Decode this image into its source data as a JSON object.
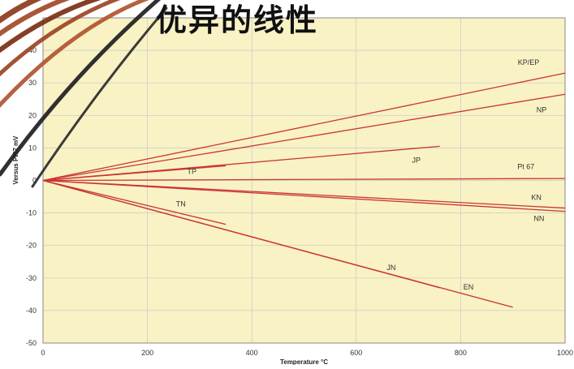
{
  "heading": "优异的线性",
  "chart_data": {
    "type": "line",
    "xlabel": "Temperature °C",
    "ylabel": "Versus Pt67 mV",
    "xlim": [
      0,
      1000
    ],
    "ylim": [
      -50,
      50
    ],
    "x_ticks": [
      0,
      200,
      400,
      600,
      800,
      1000
    ],
    "y_ticks": [
      -50,
      -40,
      -30,
      -20,
      -10,
      0,
      10,
      20,
      30,
      40
    ],
    "grid": true,
    "colors": {
      "background": "#f8f2c4",
      "grid": "#c9c9c9",
      "line": "#cc3333"
    },
    "series": [
      {
        "name": "KP/EP",
        "x": [
          0,
          1000
        ],
        "y": [
          0,
          33
        ],
        "label_at": [
          930,
          35.5
        ]
      },
      {
        "name": "NP",
        "x": [
          0,
          1000
        ],
        "y": [
          0,
          26.5
        ],
        "label_at": [
          955,
          21
        ]
      },
      {
        "name": "JP",
        "x": [
          0,
          760
        ],
        "y": [
          0,
          10.5
        ],
        "label_at": [
          715,
          5.5
        ]
      },
      {
        "name": "TP",
        "x": [
          0,
          350
        ],
        "y": [
          0,
          4.5
        ],
        "label_at": [
          285,
          2
        ]
      },
      {
        "name": "Pt 67",
        "x": [
          0,
          1000
        ],
        "y": [
          0,
          0.6
        ],
        "label_at": [
          925,
          3.5
        ]
      },
      {
        "name": "KN",
        "x": [
          0,
          1000
        ],
        "y": [
          0,
          -8.5
        ],
        "label_at": [
          945,
          -6
        ]
      },
      {
        "name": "NN",
        "x": [
          0,
          1000
        ],
        "y": [
          0,
          -9.5
        ],
        "label_at": [
          950,
          -12.5
        ]
      },
      {
        "name": "TN",
        "x": [
          0,
          350
        ],
        "y": [
          0,
          -13.5
        ],
        "label_at": [
          264,
          -8
        ]
      },
      {
        "name": "JN",
        "x": [
          0,
          760
        ],
        "y": [
          0,
          -33
        ],
        "label_at": [
          667,
          -27.5
        ]
      },
      {
        "name": "EN",
        "x": [
          0,
          900
        ],
        "y": [
          0,
          -39
        ],
        "label_at": [
          815,
          -33.5
        ]
      }
    ]
  }
}
